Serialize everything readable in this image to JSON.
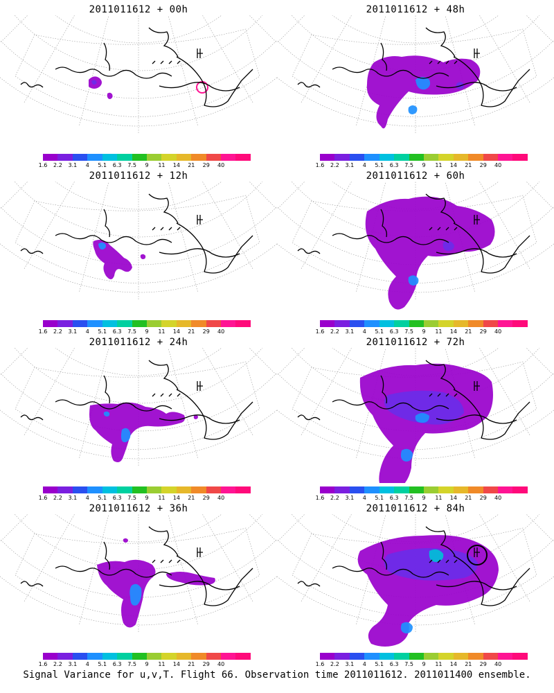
{
  "panels": [
    {
      "title": "2011011612 + 00h",
      "blobs": "p0"
    },
    {
      "title": "2011011612 + 48h",
      "blobs": "p48"
    },
    {
      "title": "2011011612 + 12h",
      "blobs": "p12"
    },
    {
      "title": "2011011612 + 60h",
      "blobs": "p60"
    },
    {
      "title": "2011011612 + 24h",
      "blobs": "p24"
    },
    {
      "title": "2011011612 + 72h",
      "blobs": "p72"
    },
    {
      "title": "2011011612 + 36h",
      "blobs": "p36"
    },
    {
      "title": "2011011612 + 84h",
      "blobs": "p84"
    }
  ],
  "colorbar": {
    "labels": [
      "1.6",
      "2.2",
      "3.1",
      "4",
      "5.1",
      "6.3",
      "7.5",
      "9",
      "11",
      "14",
      "21",
      "29",
      "40"
    ],
    "colors": [
      "#9900cc",
      "#7a1fe0",
      "#2a4ff0",
      "#1e90ff",
      "#00c0e0",
      "#00d0a0",
      "#22c022",
      "#9acd32",
      "#d4d42a",
      "#e6b82a",
      "#f08a28",
      "#f04848",
      "#ff1493",
      "#ff0a7a"
    ]
  },
  "colors": {
    "fill_low": "#9900cc",
    "fill_mid": "#6a2de8",
    "fill_blue": "#1e90ff",
    "fill_cyan": "#00bfd8",
    "pink": "#ff1493",
    "coast": "#000000",
    "grid": "#999999"
  },
  "footer": "Signal Variance for u,v,T. Flight 66. Observation time 2011011612. 2011011400 ensemble."
}
